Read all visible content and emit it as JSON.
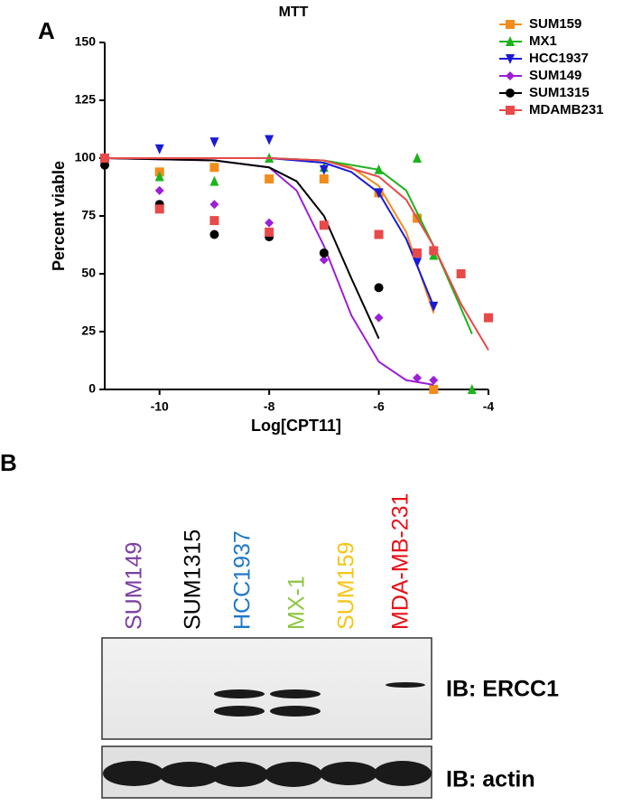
{
  "chart_data": {
    "type": "scatter",
    "panel": "A",
    "title": "MTT",
    "x_label": "Log[CPT11]",
    "y_label": "Percent viable",
    "xlim": [
      -11,
      -4
    ],
    "xticks": [
      -10,
      -8,
      -6,
      -4
    ],
    "ylim": [
      0,
      150
    ],
    "yticks": [
      0,
      25,
      50,
      75,
      100,
      125,
      150
    ],
    "legend": "top-right",
    "series": [
      {
        "name": "SUM159",
        "color": "#f28c1c",
        "marker": "square",
        "x": [
          -11,
          -10,
          -9,
          -8,
          -7,
          -6,
          -5.3,
          -5
        ],
        "values": [
          100,
          94,
          96,
          91,
          91,
          85,
          74,
          0
        ],
        "curve": {
          "x": [
            -11,
            -8,
            -7,
            -6.5,
            -6,
            -5.5,
            -5
          ],
          "y": [
            100,
            100,
            99,
            96,
            88,
            68,
            33
          ]
        }
      },
      {
        "name": "MX1",
        "color": "#1db31d",
        "marker": "triangle",
        "x": [
          -11,
          -10,
          -9,
          -8,
          -7,
          -6,
          -5.3,
          -5,
          -4.3
        ],
        "values": [
          100,
          92,
          90,
          100,
          96,
          95,
          100,
          58,
          0
        ],
        "curve": {
          "x": [
            -11,
            -8,
            -7,
            -6,
            -5.5,
            -5,
            -4.5,
            -4.3
          ],
          "y": [
            100,
            100,
            99,
            95,
            86,
            62,
            35,
            24
          ]
        }
      },
      {
        "name": "HCC1937",
        "color": "#1a1ad6",
        "marker": "down-triangle",
        "x": [
          -11,
          -10,
          -9,
          -8,
          -7,
          -6,
          -5.3,
          -5
        ],
        "values": [
          100,
          104,
          107,
          108,
          95,
          85,
          55,
          36
        ],
        "curve": {
          "x": [
            -11,
            -8,
            -7,
            -6.5,
            -6,
            -5.5,
            -5
          ],
          "y": [
            100,
            100,
            98,
            94,
            85,
            65,
            36
          ]
        }
      },
      {
        "name": "SUM149",
        "color": "#9b1fd6",
        "marker": "diamond",
        "x": [
          -11,
          -10,
          -9,
          -8,
          -7,
          -6,
          -5.3,
          -5
        ],
        "values": [
          97,
          86,
          80,
          72,
          56,
          31,
          5,
          4
        ],
        "curve": {
          "x": [
            -11,
            -9,
            -8,
            -7.5,
            -7,
            -6.5,
            -6,
            -5.5,
            -5
          ],
          "y": [
            100,
            99,
            96,
            86,
            62,
            32,
            12,
            4,
            2
          ]
        }
      },
      {
        "name": "SUM1315",
        "color": "#000000",
        "marker": "circle",
        "x": [
          -11,
          -10,
          -9,
          -8,
          -7,
          -6
        ],
        "values": [
          97,
          80,
          67,
          66,
          59,
          44
        ],
        "curve": {
          "x": [
            -11,
            -9,
            -8,
            -7.5,
            -7,
            -6.5,
            -6
          ],
          "y": [
            100,
            99,
            96,
            90,
            75,
            48,
            22
          ]
        }
      },
      {
        "name": "MDAMB231",
        "color": "#e84a4a",
        "marker": "square",
        "x": [
          -11,
          -10,
          -9,
          -8,
          -7,
          -6,
          -5.3,
          -5,
          -4.5,
          -4
        ],
        "values": [
          100,
          78,
          73,
          68,
          71,
          67,
          59,
          60,
          50,
          31
        ],
        "curve": {
          "x": [
            -11,
            -8,
            -7,
            -6,
            -5.5,
            -5,
            -4.5,
            -4
          ],
          "y": [
            100,
            100,
            99,
            92,
            82,
            62,
            37,
            17
          ]
        }
      }
    ]
  },
  "panel_b": {
    "label": "B",
    "lanes": [
      {
        "name": "SUM149",
        "color": "#7b3fa0"
      },
      {
        "name": "SUM1315",
        "color": "#000000"
      },
      {
        "name": "HCC1937",
        "color": "#1f78c8"
      },
      {
        "name": "MX-1",
        "color": "#8cc63f"
      },
      {
        "name": "SUM159",
        "color": "#f5c518"
      },
      {
        "name": "MDA-MB-231",
        "color": "#e8101a"
      }
    ],
    "blots": [
      "IB: ERCC1",
      "IB: actin"
    ]
  }
}
